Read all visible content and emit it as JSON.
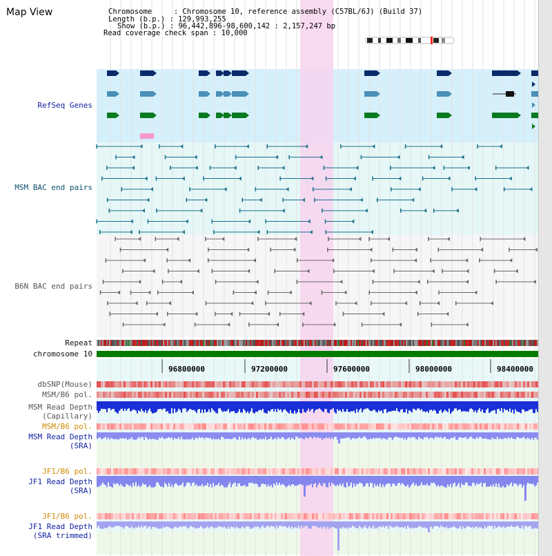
{
  "title": "Map View",
  "header": {
    "chromosome": "Chromosome     : Chromosome 10, reference assembly (C57BL/6J) (Build 37)",
    "length": "Length (b.p.) : 129,993,255",
    "show": "Show (b.p.) : 96,442,896-98,600,142 : 2,157,247 bp",
    "coverage": "Read coverage check span : 10,000"
  },
  "tracks": {
    "refseq": "RefSeq Genes",
    "msm_bac": "MSM BAC end pairs",
    "b6n_bac": "B6N BAC end pairs",
    "repeat": "Repeat",
    "chromosome": "chromosome 10",
    "dbsnp": "dbSNP(Mouse)",
    "msm_b6_pol_cap": "MSM/B6 pol.",
    "msm_depth_cap": "MSM Read Depth\n(Capillary)",
    "msm_b6_pol_sra": "MSM/B6 pol.",
    "msm_depth_sra": "MSM Read Depth\n(SRA)",
    "jf1_b6_pol": "JF1/B6 pol.",
    "jf1_depth_sra": "JF1 Read Depth\n(SRA)",
    "jf1_b6_pol_trim": "JF1/B6 pol.",
    "jf1_depth_trim": "JF1 Read Depth\n(SRA trimmed)"
  },
  "axis_ticks": [
    "96800000",
    "97200000",
    "97600000",
    "98000000",
    "98400000"
  ],
  "colors": {
    "refseq_bg": "#d6f0fb",
    "bac_bg": "#e5f7f7",
    "highlight": "#f7d3ef",
    "chromosome_bar": "#007a00",
    "label_blue": "#1020a0",
    "label_orange": "#d08a00"
  }
}
